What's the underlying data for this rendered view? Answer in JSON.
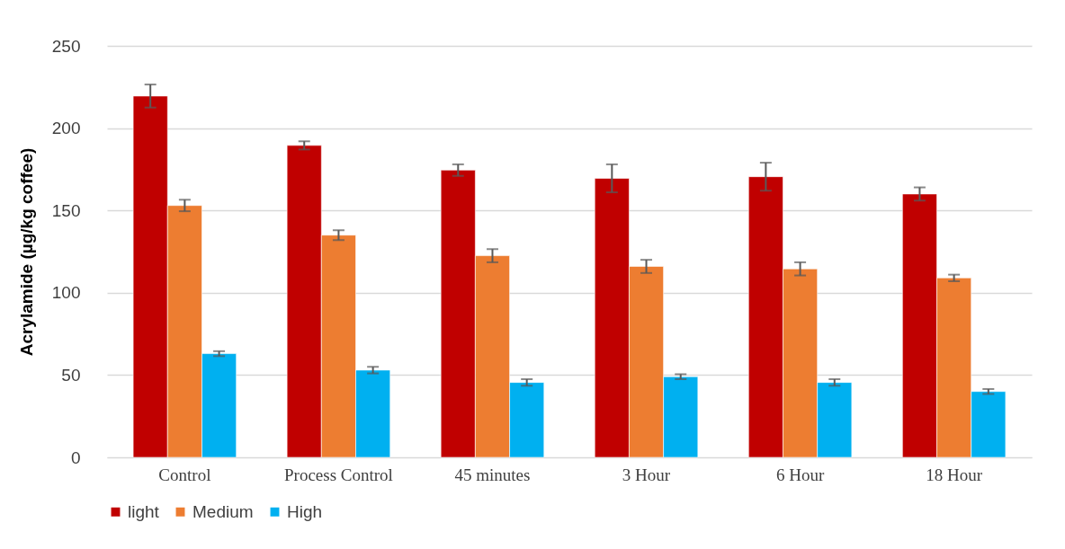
{
  "chart_data": {
    "type": "bar",
    "ylabel": "Acrylamide (µg/kg coffee)",
    "categories": [
      "Control",
      "Process Control",
      "45 minutes",
      "3 Hour",
      "6 Hour",
      "18 Hour"
    ],
    "series": [
      {
        "name": "light",
        "color": "#c00000",
        "values": [
          219.5,
          189.5,
          174.5,
          169.5,
          170.5,
          160
        ],
        "errors": [
          7,
          2.5,
          3.5,
          8.5,
          8.5,
          4
        ]
      },
      {
        "name": "Medium",
        "color": "#ed7d31",
        "values": [
          153,
          135,
          122.5,
          116,
          114.5,
          109
        ],
        "errors": [
          3.5,
          3,
          4,
          4,
          4,
          2
        ]
      },
      {
        "name": "High",
        "color": "#00b0f0",
        "values": [
          63,
          53,
          45.5,
          49,
          45.5,
          40
        ],
        "errors": [
          1.5,
          2,
          2,
          1.5,
          2,
          1.5
        ]
      }
    ],
    "ylim": [
      0,
      250
    ],
    "yticks": [
      0,
      50,
      100,
      150,
      200,
      250
    ],
    "grid": "y",
    "legend": "bottom"
  }
}
